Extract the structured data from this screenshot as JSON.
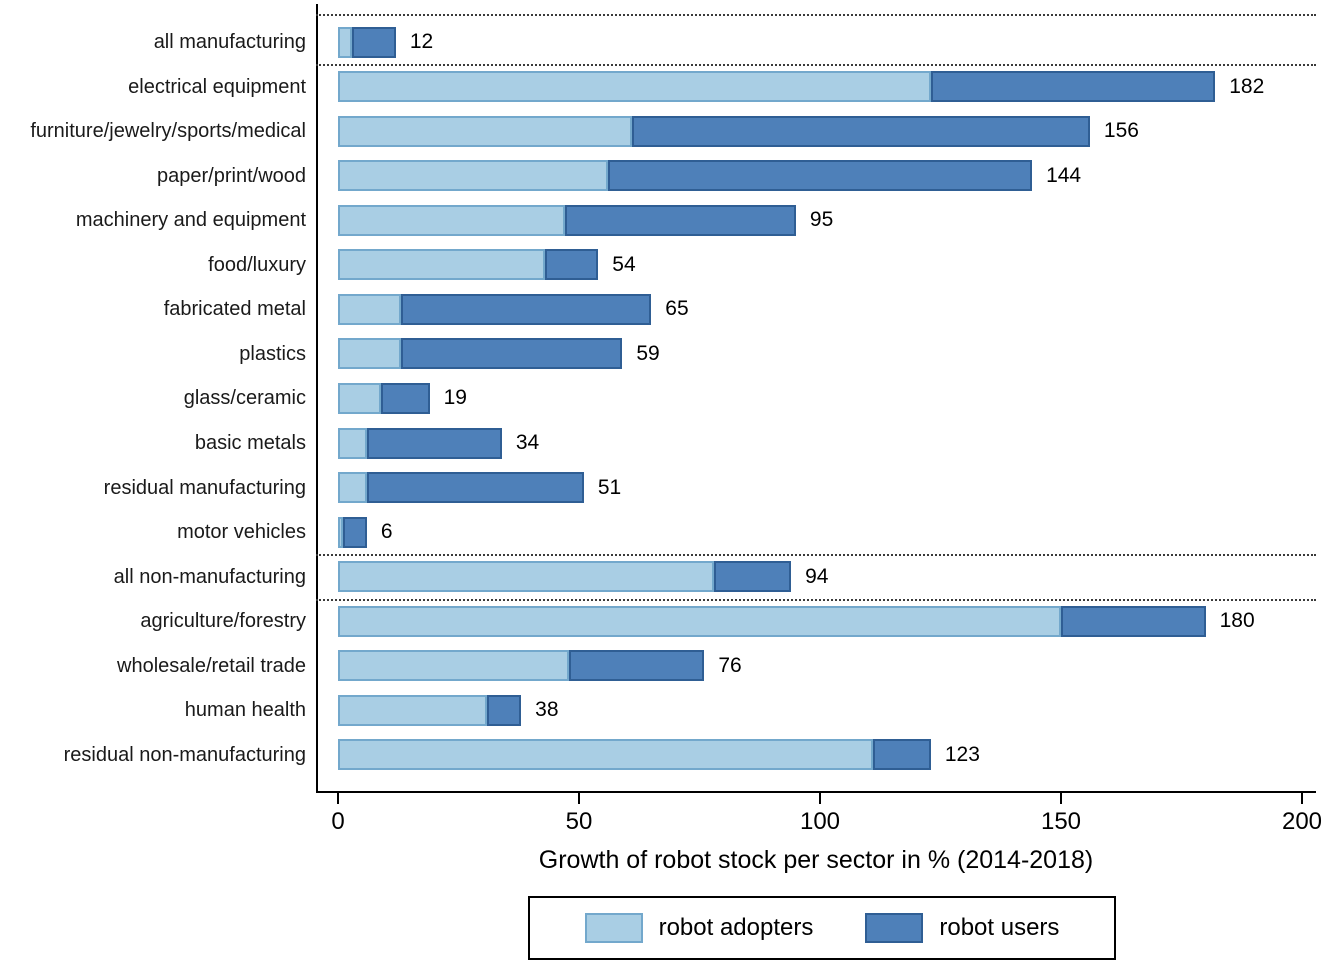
{
  "chart_data": {
    "type": "bar",
    "orientation": "horizontal",
    "stacked": true,
    "title": "",
    "xlabel": "Growth of robot stock per sector in % (2014-2018)",
    "ylabel": "",
    "xlim": [
      0,
      200
    ],
    "x_ticks": [
      0,
      50,
      100,
      150,
      200
    ],
    "grid": false,
    "categories": [
      "all manufacturing",
      "electrical equipment",
      "furniture/jewelry/sports/medical",
      "paper/print/wood",
      "machinery and equipment",
      "food/luxury",
      "fabricated metal",
      "plastics",
      "glass/ceramic",
      "basic metals",
      "residual manufacturing",
      "motor vehicles",
      "all non-manufacturing",
      "agriculture/forestry",
      "wholesale/retail trade",
      "human health",
      "residual non-manufacturing"
    ],
    "series": [
      {
        "name": "robot adopters",
        "color": "#a9cee4",
        "border_color": "#73a8cc",
        "values": [
          3,
          123,
          61,
          56,
          47,
          43,
          13,
          13,
          9,
          6,
          6,
          1,
          78,
          150,
          48,
          31,
          111
        ]
      },
      {
        "name": "robot users",
        "color": "#4e80b9",
        "border_color": "#2f5e94",
        "values": [
          9,
          59,
          95,
          88,
          48,
          11,
          52,
          46,
          10,
          28,
          45,
          5,
          16,
          30,
          28,
          7,
          12
        ]
      }
    ],
    "totals": [
      12,
      182,
      156,
      144,
      95,
      54,
      65,
      59,
      19,
      34,
      51,
      6,
      94,
      180,
      76,
      38,
      123
    ],
    "separators_before_rows": [
      0,
      1,
      12,
      13
    ],
    "legend_position": "bottom"
  }
}
